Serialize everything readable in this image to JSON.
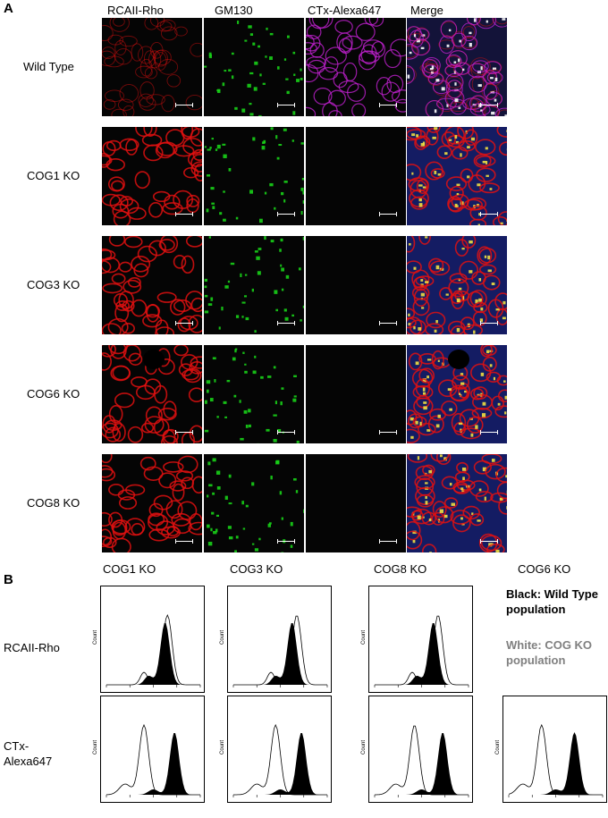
{
  "panel_a": {
    "letter": "A",
    "columns": [
      "RCAII-Rho",
      "GM130",
      "CTx-Alexa647",
      "Merge"
    ],
    "rows": [
      "Wild Type",
      "COG1 KO",
      "COG3 KO",
      "COG6 KO",
      "COG8 KO"
    ]
  },
  "panel_b": {
    "letter": "B",
    "columns": [
      "COG1 KO",
      "COG3 KO",
      "COG8 KO",
      "COG6 KO"
    ],
    "row1": "RCAII-Rho",
    "row2": "CTx-\nAlexa647",
    "legend_black": "Black: Wild Type population",
    "legend_white": "White: COG KO population",
    "axis_count": "Count"
  },
  "colors": {
    "rho": "#e01010",
    "gm130": "#18d018",
    "ctx": "#c020d0",
    "nuclei": "#2030b0"
  },
  "chart_data": [
    {
      "type": "area",
      "title": "",
      "x_scale": "log",
      "xlim": [
        10,
        100000
      ],
      "series": [
        {
          "name": "",
          "peak_x_log": 3.5
        },
        {
          "name": "",
          "peak_x_log": 3.6
        }
      ],
      "panel": "COG1 KO / RCAII-Rho"
    },
    {
      "type": "area",
      "title": "",
      "x_scale": "log",
      "xlim": [
        10,
        100000
      ],
      "series": [
        {
          "name": "",
          "peak_x_log": 3.5
        },
        {
          "name": "",
          "peak_x_log": 3.7
        }
      ],
      "panel": "COG3 KO / RCAII-Rho"
    },
    {
      "type": "area",
      "title": "",
      "x_scale": "log",
      "xlim": [
        10,
        100000
      ],
      "series": [
        {
          "name": "",
          "peak_x_log": 3.5
        },
        {
          "name": "",
          "peak_x_log": 3.7
        }
      ],
      "panel": "COG8 KO / RCAII-Rho"
    },
    {
      "type": "area",
      "title": "",
      "x_scale": "log",
      "xlim": [
        10,
        100000
      ],
      "series": [
        {
          "name": "",
          "peak_x_log": 3.9
        },
        {
          "name": "",
          "peak_x_log": 2.6
        }
      ],
      "panel": "COG1 KO / CTx-Alexa647"
    },
    {
      "type": "area",
      "title": "",
      "x_scale": "log",
      "xlim": [
        10,
        100000
      ],
      "series": [
        {
          "name": "",
          "peak_x_log": 3.9
        },
        {
          "name": "",
          "peak_x_log": 2.8
        }
      ],
      "panel": "COG3 KO / CTx-Alexa647"
    },
    {
      "type": "area",
      "title": "",
      "x_scale": "log",
      "xlim": [
        10,
        100000
      ],
      "series": [
        {
          "name": "",
          "peak_x_log": 3.9
        },
        {
          "name": "",
          "peak_x_log": 2.7
        }
      ],
      "panel": "COG8 KO / CTx-Alexa647"
    },
    {
      "type": "area",
      "title": "",
      "x_scale": "log",
      "xlim": [
        10,
        100000
      ],
      "series": [
        {
          "name": "",
          "peak_x_log": 3.8
        },
        {
          "name": "",
          "peak_x_log": 2.4
        }
      ],
      "panel": "COG6 KO / CTx-Alexa647"
    }
  ]
}
